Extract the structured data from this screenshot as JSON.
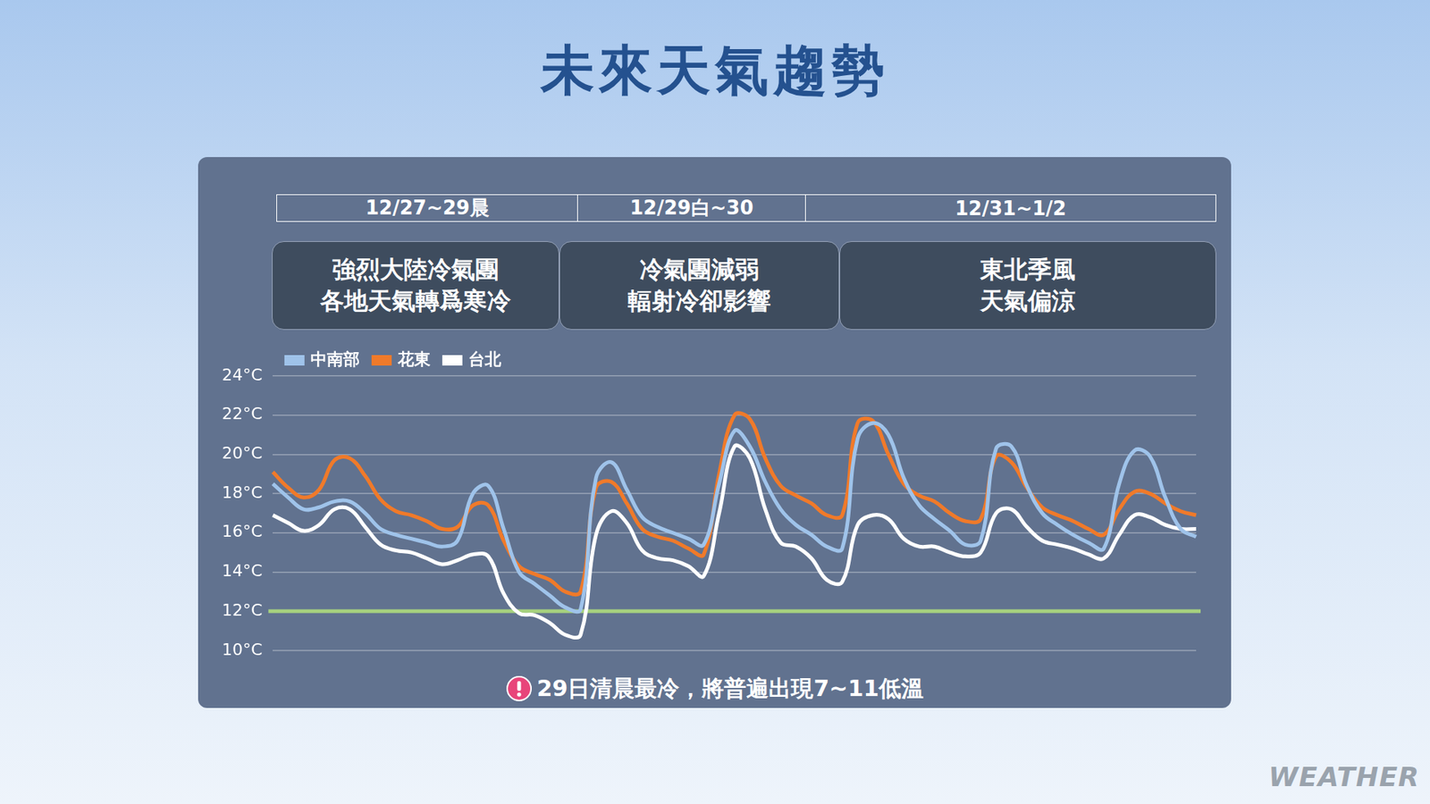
{
  "chart_data": {
    "type": "line",
    "title": "未來天氣趨勢",
    "periods": [
      {
        "dates": "12/27~29晨",
        "lines": [
          "強烈大陸冷氣團",
          "各地天氣轉爲寒冷"
        ]
      },
      {
        "dates": "12/29白~30",
        "lines": [
          "冷氣團減弱",
          "輻射冷卻影響"
        ]
      },
      {
        "dates": "12/31~1/2",
        "lines": [
          "東北季風",
          "天氣偏涼"
        ]
      }
    ],
    "note": "29日清晨最冷，將普遍出現7~11低溫",
    "watermark": "WEATHER",
    "categories": [
      null,
      null,
      null,
      null,
      null,
      null,
      null,
      null,
      null,
      null,
      null,
      null,
      null,
      null,
      null,
      null,
      null,
      null,
      null,
      null,
      null,
      null,
      null,
      null,
      null,
      null,
      null,
      null,
      null,
      null,
      null,
      null,
      null,
      null,
      null,
      null,
      null,
      null,
      null,
      null,
      null,
      null,
      null,
      null,
      null,
      null,
      null,
      null,
      null,
      null,
      null,
      null,
      null,
      null,
      null,
      null,
      null,
      null,
      null,
      null,
      null
    ],
    "series": [
      {
        "name": "中南部",
        "color": "#9fc3ea",
        "values": [
          18.5,
          17.8,
          17.2,
          17.3,
          17.6,
          17.6,
          17.0,
          16.2,
          15.9,
          15.7,
          15.5,
          15.3,
          15.6,
          18.0,
          18.4,
          16.2,
          14.0,
          13.4,
          12.8,
          12.2,
          12.1,
          18.8,
          19.6,
          18.2,
          16.8,
          16.3,
          16.0,
          15.7,
          15.4,
          18.5,
          21.2,
          20.4,
          18.6,
          17.2,
          16.4,
          15.9,
          15.3,
          15.2,
          20.8,
          21.6,
          21.0,
          18.8,
          17.4,
          16.7,
          16.1,
          15.4,
          15.6,
          20.3,
          20.4,
          18.4,
          17.0,
          16.4,
          15.9,
          15.5,
          15.2,
          18.5,
          20.2,
          19.9,
          17.8,
          16.2,
          15.8
        ]
      },
      {
        "name": "花東",
        "color": "#f07a2a",
        "values": [
          19.1,
          18.3,
          17.8,
          18.2,
          19.7,
          19.8,
          18.9,
          17.7,
          17.1,
          16.9,
          16.6,
          16.2,
          16.3,
          17.4,
          17.4,
          15.6,
          14.3,
          13.9,
          13.6,
          13.0,
          13.0,
          18.3,
          18.6,
          17.5,
          16.2,
          15.8,
          15.6,
          15.2,
          14.9,
          19.0,
          22.0,
          21.8,
          19.8,
          18.4,
          17.9,
          17.5,
          16.9,
          16.9,
          21.6,
          21.7,
          20.0,
          18.5,
          17.9,
          17.6,
          17.0,
          16.6,
          16.7,
          19.9,
          19.6,
          18.3,
          17.3,
          16.9,
          16.6,
          16.2,
          15.9,
          17.2,
          18.1,
          18.0,
          17.5,
          17.1,
          16.9
        ]
      },
      {
        "name": "台北",
        "color": "#ffffff",
        "values": [
          16.9,
          16.5,
          16.1,
          16.4,
          17.2,
          17.2,
          16.3,
          15.4,
          15.1,
          15.0,
          14.7,
          14.4,
          14.6,
          14.9,
          14.8,
          12.9,
          11.9,
          11.8,
          11.4,
          10.8,
          10.8,
          15.9,
          17.1,
          16.5,
          15.1,
          14.7,
          14.6,
          14.3,
          13.8,
          17.0,
          20.4,
          19.8,
          17.2,
          15.5,
          15.3,
          14.7,
          13.6,
          13.5,
          16.4,
          16.9,
          16.7,
          15.7,
          15.3,
          15.3,
          15.0,
          14.8,
          15.0,
          17.0,
          17.2,
          16.3,
          15.6,
          15.4,
          15.2,
          14.9,
          14.7,
          15.9,
          16.9,
          16.8,
          16.4,
          16.2,
          16.2
        ]
      }
    ],
    "reference_line": {
      "value": 12,
      "color": "#a6d17e"
    },
    "ylim": [
      10,
      24
    ],
    "yticks": [
      {
        "value": 10,
        "label": "10°C"
      },
      {
        "value": 12,
        "label": "12°C"
      },
      {
        "value": 14,
        "label": "14°C"
      },
      {
        "value": 16,
        "label": "16°C"
      },
      {
        "value": 18,
        "label": "18°C"
      },
      {
        "value": 20,
        "label": "20°C"
      },
      {
        "value": 22,
        "label": "22°C"
      },
      {
        "value": 24,
        "label": "24°C"
      }
    ],
    "grid": true,
    "legend": "top-left",
    "tick_labels": "y"
  }
}
